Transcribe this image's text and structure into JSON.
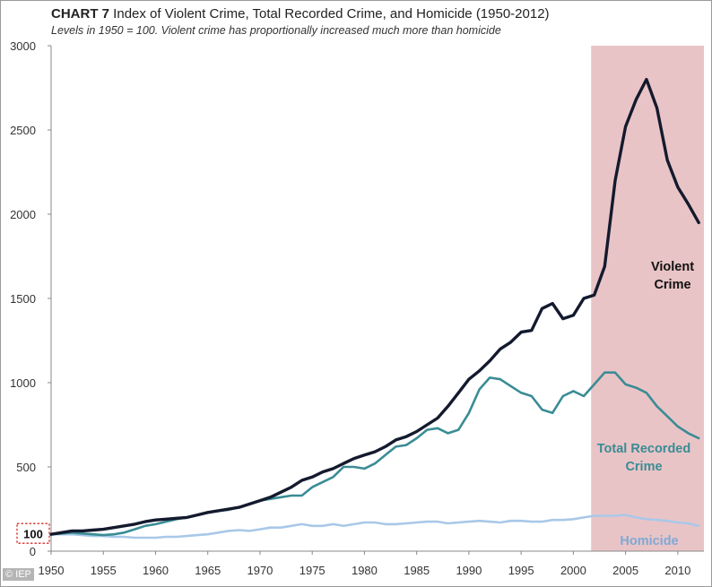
{
  "header": {
    "title_bold": "CHART 7",
    "title_rest": " Index of Violent Crime, Total Recorded Crime, and Homicide (1950-2012)",
    "subtitle": "Levels in 1950 = 100. Violent crime has proportionally increased much more than homicide"
  },
  "watermark": "© IEP",
  "colors": {
    "violent": "#141a2e",
    "total": "#3a8c95",
    "homicide": "#a9c8e8",
    "shade": "#e9c4c6",
    "axis": "#888888",
    "label_total": "#3a8c95",
    "label_homicide": "#7fa9d6",
    "baseline_box": "#d9322b"
  },
  "chart_data": {
    "type": "line",
    "title": "CHART 7 Index of Violent Crime, Total Recorded Crime, and Homicide (1950-2012)",
    "subtitle": "Levels in 1950 = 100. Violent crime has proportionally increased much more than homicide",
    "xlabel": "",
    "ylabel": "",
    "xlim": [
      1950,
      2012.5
    ],
    "ylim": [
      0,
      3000
    ],
    "x_ticks": [
      1950,
      1955,
      1960,
      1965,
      1970,
      1975,
      1980,
      1985,
      1990,
      1995,
      2000,
      2005,
      2010
    ],
    "y_ticks": [
      0,
      500,
      1000,
      1500,
      2000,
      2500,
      3000
    ],
    "baseline_label": "100",
    "shaded_region": {
      "from": 2001.7,
      "to": 2012.5
    },
    "x": [
      1950,
      1951,
      1952,
      1953,
      1954,
      1955,
      1956,
      1957,
      1958,
      1959,
      1960,
      1961,
      1962,
      1963,
      1964,
      1965,
      1966,
      1967,
      1968,
      1969,
      1970,
      1971,
      1972,
      1973,
      1974,
      1975,
      1976,
      1977,
      1978,
      1979,
      1980,
      1981,
      1982,
      1983,
      1984,
      1985,
      1986,
      1987,
      1988,
      1989,
      1990,
      1991,
      1992,
      1993,
      1994,
      1995,
      1996,
      1997,
      1998,
      1999,
      2000,
      2001,
      2002,
      2003,
      2004,
      2005,
      2006,
      2007,
      2008,
      2009,
      2010,
      2011,
      2012
    ],
    "series": [
      {
        "name": "Violent Crime",
        "label_lines": [
          "Violent",
          "Crime"
        ],
        "values": [
          100,
          110,
          120,
          120,
          125,
          130,
          140,
          150,
          160,
          175,
          185,
          190,
          195,
          200,
          215,
          230,
          240,
          250,
          260,
          280,
          300,
          320,
          350,
          380,
          420,
          440,
          470,
          490,
          520,
          550,
          570,
          590,
          620,
          660,
          680,
          710,
          750,
          790,
          860,
          940,
          1020,
          1070,
          1130,
          1200,
          1240,
          1300,
          1310,
          1440,
          1470,
          1380,
          1400,
          1500,
          1520,
          1690,
          2200,
          2520,
          2680,
          2800,
          2630,
          2320,
          2160,
          2060,
          1950
        ]
      },
      {
        "name": "Total Recorded Crime",
        "label_lines": [
          "Total Recorded",
          "Crime"
        ],
        "values": [
          100,
          105,
          110,
          105,
          100,
          95,
          100,
          110,
          130,
          150,
          160,
          175,
          190,
          200,
          215,
          230,
          240,
          245,
          260,
          280,
          300,
          310,
          320,
          330,
          330,
          380,
          410,
          440,
          500,
          500,
          490,
          520,
          570,
          620,
          630,
          670,
          720,
          730,
          700,
          720,
          820,
          960,
          1030,
          1020,
          980,
          940,
          920,
          840,
          820,
          920,
          950,
          920,
          990,
          1060,
          1060,
          990,
          970,
          940,
          860,
          800,
          740,
          700,
          670
        ]
      },
      {
        "name": "Homicide",
        "label_lines": [
          "Homicide"
        ],
        "values": [
          100,
          100,
          100,
          95,
          90,
          90,
          85,
          85,
          80,
          80,
          80,
          85,
          85,
          90,
          95,
          100,
          110,
          120,
          125,
          120,
          130,
          140,
          140,
          150,
          160,
          150,
          150,
          160,
          150,
          160,
          170,
          170,
          160,
          160,
          165,
          170,
          175,
          175,
          165,
          170,
          175,
          180,
          175,
          170,
          180,
          180,
          175,
          175,
          185,
          185,
          190,
          200,
          210,
          210,
          210,
          215,
          200,
          190,
          185,
          180,
          170,
          165,
          150
        ]
      }
    ]
  }
}
